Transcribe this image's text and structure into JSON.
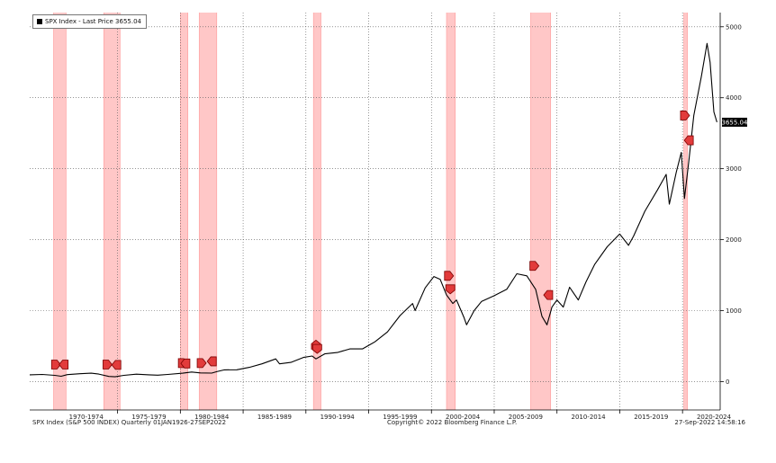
{
  "colors": {
    "line": "#000000",
    "recession_shade": "#ffc7c7",
    "recession_edge": "#ff9a9a",
    "marker_fill": "#e23b3b",
    "marker_stroke": "#7a0000",
    "grid": "#555555",
    "price_tag_bg": "#000000",
    "price_tag_text": "#ffffff"
  },
  "legend": {
    "label": "SPX Index - Last Price 3655.04"
  },
  "footer": {
    "left": "SPX Index (S&P 500 INDEX) Quarterly 01JAN1926-27SEP2022",
    "center": "Copyright© 2022 Bloomberg Finance L.P.",
    "right": "27-Sep-2022 14:58:16"
  },
  "chart_data": {
    "type": "line",
    "title": "SPX Index - Last Price 3655.04",
    "xlabel": "",
    "ylabel": "",
    "xlim": [
      1968.0,
      2023.0
    ],
    "ylim": [
      -400,
      5200
    ],
    "y_ticks": [
      0,
      1000,
      2000,
      3000,
      4000,
      5000
    ],
    "y_tick_labels": [
      "0",
      "1000",
      "2000",
      "3000",
      "4000",
      "5000"
    ],
    "x_tick_positions": [
      1972.5,
      1977.5,
      1982.5,
      1987.5,
      1992.5,
      1997.5,
      2002.5,
      2007.5,
      2012.5,
      2017.5,
      2022.5
    ],
    "x_tick_labels": [
      "1970-1974",
      "1975-1979",
      "1980-1984",
      "1985-1989",
      "1990-1994",
      "1995-1999",
      "2000-2004",
      "2005-2009",
      "2010-2014",
      "2015-2019",
      "2020-2024"
    ],
    "last_price": 3655.04,
    "last_price_label": "3655.04",
    "legend_position": "top-left",
    "grid": true,
    "series": [
      {
        "name": "SPX Index - Last Price",
        "x": [
          1968.0,
          1969.0,
          1970.0,
          1970.5,
          1971.0,
          1972.0,
          1972.9,
          1973.5,
          1974.3,
          1974.8,
          1975.5,
          1976.5,
          1977.5,
          1978.2,
          1979.0,
          1980.2,
          1980.9,
          1981.6,
          1982.5,
          1982.9,
          1983.5,
          1984.5,
          1985.5,
          1986.5,
          1987.6,
          1987.9,
          1988.8,
          1989.8,
          1990.5,
          1990.8,
          1991.5,
          1992.5,
          1993.5,
          1994.5,
          1995.5,
          1996.5,
          1997.5,
          1998.5,
          1998.7,
          1999.5,
          2000.2,
          2000.7,
          2001.2,
          2001.7,
          2002.0,
          2002.6,
          2002.8,
          2003.4,
          2004.0,
          2005.0,
          2006.0,
          2006.8,
          2007.6,
          2008.3,
          2008.8,
          2009.2,
          2009.6,
          2010.0,
          2010.5,
          2011.0,
          2011.7,
          2012.3,
          2013.0,
          2014.0,
          2015.0,
          2015.7,
          2016.1,
          2017.0,
          2018.0,
          2018.7,
          2018.95,
          2019.5,
          2019.9,
          2020.15,
          2020.5,
          2020.9,
          2021.5,
          2021.95,
          2022.2,
          2022.5,
          2022.74
        ],
        "values": [
          95,
          100,
          88,
          75,
          98,
          110,
          118,
          106,
          72,
          68,
          88,
          104,
          95,
          90,
          101,
          118,
          135,
          122,
          120,
          140,
          165,
          166,
          200,
          250,
          320,
          250,
          270,
          340,
          360,
          320,
          390,
          410,
          460,
          460,
          560,
          700,
          930,
          1100,
          1000,
          1320,
          1480,
          1440,
          1220,
          1100,
          1150,
          900,
          800,
          1000,
          1130,
          1210,
          1300,
          1520,
          1490,
          1300,
          920,
          800,
          1050,
          1150,
          1050,
          1330,
          1150,
          1400,
          1650,
          1900,
          2080,
          1920,
          2050,
          2400,
          2700,
          2920,
          2500,
          2950,
          3230,
          2580,
          3100,
          3750,
          4300,
          4766,
          4500,
          3800,
          3655
        ]
      }
    ],
    "recession_periods": [
      [
        1969.9,
        1970.9
      ],
      [
        1973.9,
        1975.2
      ],
      [
        1980.0,
        1980.6
      ],
      [
        1981.5,
        1982.9
      ],
      [
        1990.6,
        1991.2
      ],
      [
        2001.2,
        2001.9
      ],
      [
        2007.9,
        2009.5
      ],
      [
        2020.1,
        2020.4
      ]
    ],
    "markers": [
      {
        "x": 1970.1,
        "y": 240,
        "direction": "right"
      },
      {
        "x": 1970.7,
        "y": 240,
        "direction": "left"
      },
      {
        "x": 1974.2,
        "y": 240,
        "direction": "right"
      },
      {
        "x": 1974.9,
        "y": 235,
        "direction": "left"
      },
      {
        "x": 1980.2,
        "y": 260,
        "direction": "right"
      },
      {
        "x": 1980.4,
        "y": 255,
        "direction": "left"
      },
      {
        "x": 1981.7,
        "y": 260,
        "direction": "right"
      },
      {
        "x": 1982.5,
        "y": 285,
        "direction": "left"
      },
      {
        "x": 1990.8,
        "y": 520,
        "direction": "up"
      },
      {
        "x": 1990.9,
        "y": 460,
        "direction": "down"
      },
      {
        "x": 2001.4,
        "y": 1490,
        "direction": "right"
      },
      {
        "x": 2001.5,
        "y": 1300,
        "direction": "down"
      },
      {
        "x": 2008.2,
        "y": 1630,
        "direction": "right"
      },
      {
        "x": 2009.3,
        "y": 1220,
        "direction": "left"
      },
      {
        "x": 2020.2,
        "y": 3750,
        "direction": "right"
      },
      {
        "x": 2020.5,
        "y": 3400,
        "direction": "left"
      }
    ]
  }
}
